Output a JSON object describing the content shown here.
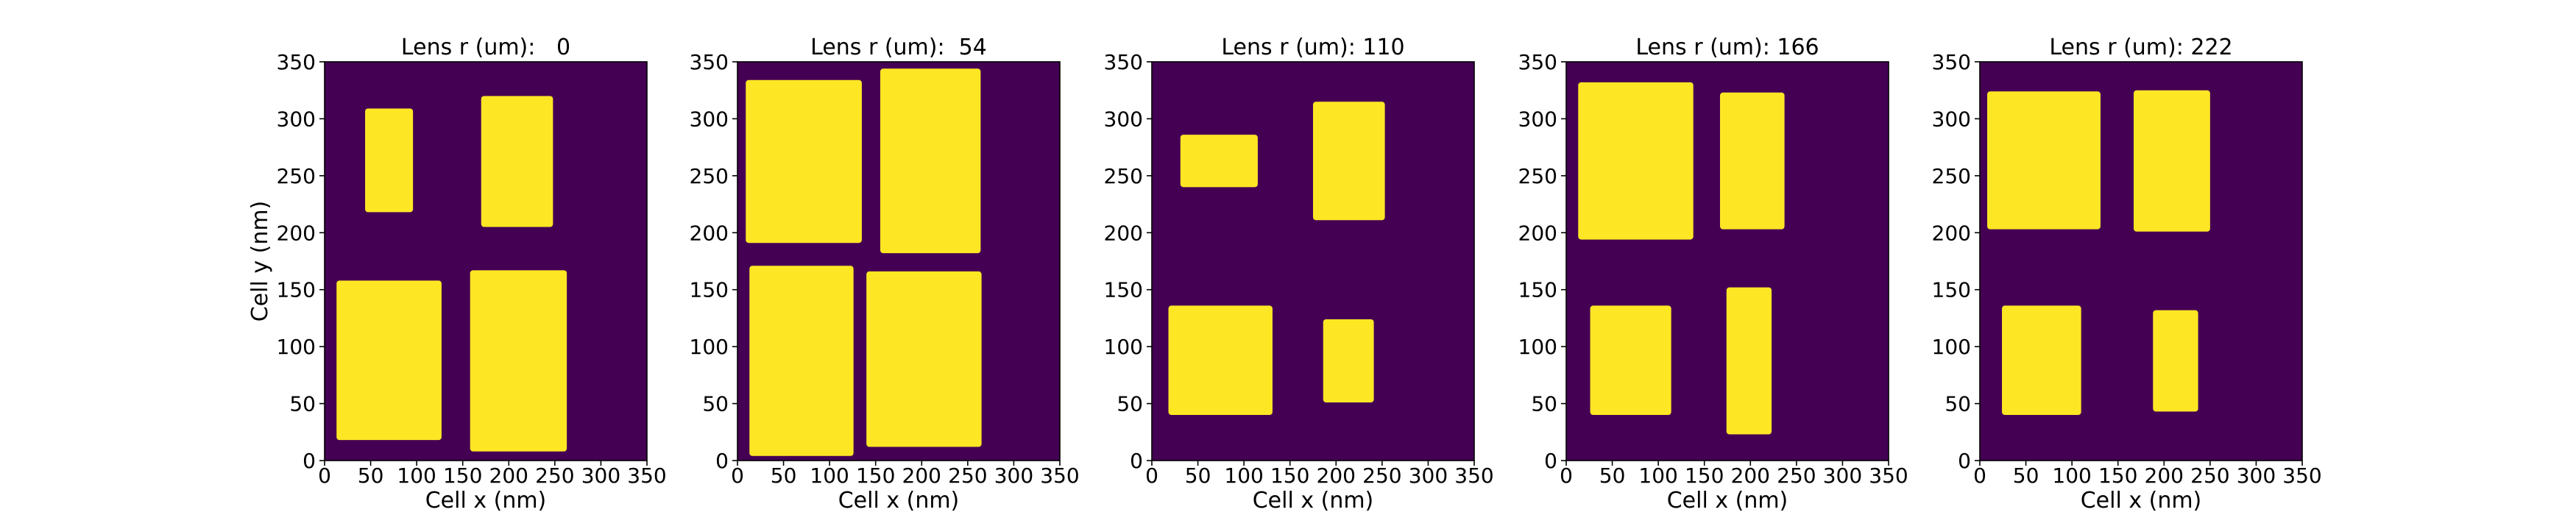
{
  "colors": {
    "background": "#440154",
    "fill": "#fde725",
    "axis": "#000000"
  },
  "chart_data": [
    {
      "type": "heatmap",
      "title": "Lens r (um):   0",
      "xlabel": "Cell x (nm)",
      "ylabel": "Cell y (nm)",
      "xlim": [
        0,
        350
      ],
      "ylim": [
        0,
        350
      ],
      "xticks": [
        "0",
        "50",
        "100",
        "150",
        "200",
        "250",
        "300",
        "350"
      ],
      "yticks": [
        "0",
        "50",
        "100",
        "150",
        "200",
        "250",
        "300",
        "350"
      ],
      "grid": false,
      "rects": [
        {
          "x0": 44,
          "x1": 96,
          "y0": 218,
          "y1": 309
        },
        {
          "x0": 170,
          "x1": 248,
          "y0": 205,
          "y1": 320
        },
        {
          "x0": 13,
          "x1": 127,
          "y0": 18,
          "y1": 158
        },
        {
          "x0": 158,
          "x1": 263,
          "y0": 8,
          "y1": 167
        }
      ]
    },
    {
      "type": "heatmap",
      "title": "Lens r (um):  54",
      "xlabel": "Cell x (nm)",
      "ylabel": "",
      "xlim": [
        0,
        350
      ],
      "ylim": [
        0,
        350
      ],
      "xticks": [
        "0",
        "50",
        "100",
        "150",
        "200",
        "250",
        "300",
        "350"
      ],
      "yticks": [
        "0",
        "50",
        "100",
        "150",
        "200",
        "250",
        "300",
        "350"
      ],
      "grid": false,
      "rects": [
        {
          "x0": 9,
          "x1": 135,
          "y0": 191,
          "y1": 334
        },
        {
          "x0": 155,
          "x1": 264,
          "y0": 182,
          "y1": 344
        },
        {
          "x0": 13,
          "x1": 126,
          "y0": 4,
          "y1": 171
        },
        {
          "x0": 140,
          "x1": 265,
          "y0": 12,
          "y1": 166
        }
      ]
    },
    {
      "type": "heatmap",
      "title": "Lens r (um): 110",
      "xlabel": "Cell x (nm)",
      "ylabel": "",
      "xlim": [
        0,
        350
      ],
      "ylim": [
        0,
        350
      ],
      "xticks": [
        "0",
        "50",
        "100",
        "150",
        "200",
        "250",
        "300",
        "350"
      ],
      "yticks": [
        "0",
        "50",
        "100",
        "150",
        "200",
        "250",
        "300",
        "350"
      ],
      "grid": false,
      "rects": [
        {
          "x0": 31,
          "x1": 115,
          "y0": 240,
          "y1": 286
        },
        {
          "x0": 175,
          "x1": 253,
          "y0": 211,
          "y1": 315
        },
        {
          "x0": 18,
          "x1": 131,
          "y0": 40,
          "y1": 136
        },
        {
          "x0": 186,
          "x1": 241,
          "y0": 51,
          "y1": 124
        }
      ]
    },
    {
      "type": "heatmap",
      "title": "Lens r (um): 166",
      "xlabel": "Cell x (nm)",
      "ylabel": "",
      "xlim": [
        0,
        350
      ],
      "ylim": [
        0,
        350
      ],
      "xticks": [
        "0",
        "50",
        "100",
        "150",
        "200",
        "250",
        "300",
        "350"
      ],
      "yticks": [
        "0",
        "50",
        "100",
        "150",
        "200",
        "250",
        "300",
        "350"
      ],
      "grid": false,
      "rects": [
        {
          "x0": 13,
          "x1": 138,
          "y0": 194,
          "y1": 332
        },
        {
          "x0": 167,
          "x1": 237,
          "y0": 203,
          "y1": 323
        },
        {
          "x0": 26,
          "x1": 114,
          "y0": 40,
          "y1": 136
        },
        {
          "x0": 174,
          "x1": 223,
          "y0": 23,
          "y1": 152
        }
      ]
    },
    {
      "type": "heatmap",
      "title": "Lens r (um): 222",
      "xlabel": "Cell x (nm)",
      "ylabel": "",
      "xlim": [
        0,
        350
      ],
      "ylim": [
        0,
        350
      ],
      "xticks": [
        "0",
        "50",
        "100",
        "150",
        "200",
        "250",
        "300",
        "350"
      ],
      "yticks": [
        "0",
        "50",
        "100",
        "150",
        "200",
        "250",
        "300",
        "350"
      ],
      "grid": false,
      "rects": [
        {
          "x0": 8,
          "x1": 131,
          "y0": 203,
          "y1": 324
        },
        {
          "x0": 167,
          "x1": 250,
          "y0": 201,
          "y1": 325
        },
        {
          "x0": 24,
          "x1": 110,
          "y0": 40,
          "y1": 136
        },
        {
          "x0": 188,
          "x1": 237,
          "y0": 43,
          "y1": 132
        }
      ]
    }
  ]
}
